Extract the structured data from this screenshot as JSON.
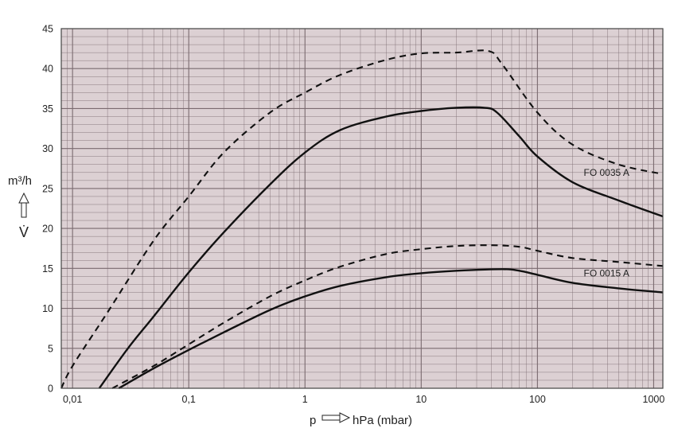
{
  "chart_data": {
    "type": "line",
    "x_scale": "log",
    "xlim": [
      0.008,
      1200
    ],
    "ylim": [
      0,
      45
    ],
    "grid": true,
    "colors": {
      "plot_background": "#dcd0d3",
      "grid": "#7a6a6f",
      "curve": "#111111"
    },
    "x_ticks": [
      {
        "value": 0.01,
        "label": "0,01"
      },
      {
        "value": 0.1,
        "label": "0,1"
      },
      {
        "value": 1,
        "label": "1"
      },
      {
        "value": 10,
        "label": "10"
      },
      {
        "value": 100,
        "label": "100"
      },
      {
        "value": 1000,
        "label": "1000"
      }
    ],
    "y_ticks": [
      {
        "value": 0,
        "label": "0"
      },
      {
        "value": 5,
        "label": "5"
      },
      {
        "value": 10,
        "label": "10"
      },
      {
        "value": 15,
        "label": "15"
      },
      {
        "value": 20,
        "label": "20"
      },
      {
        "value": 25,
        "label": "25"
      },
      {
        "value": 30,
        "label": "30"
      },
      {
        "value": 35,
        "label": "35"
      },
      {
        "value": 40,
        "label": "40"
      },
      {
        "value": 45,
        "label": "45"
      }
    ],
    "xlabel": {
      "symbol": "p",
      "unit": "hPa (mbar)"
    },
    "ylabel": {
      "unit": "m³/h",
      "symbol": "V̇"
    },
    "series": [
      {
        "label": "FO 0035 A",
        "style": "dashed",
        "points": [
          [
            0.008,
            0
          ],
          [
            0.01,
            2.8
          ],
          [
            0.02,
            9.5
          ],
          [
            0.05,
            18.5
          ],
          [
            0.1,
            24
          ],
          [
            0.2,
            29.5
          ],
          [
            0.5,
            34.5
          ],
          [
            1,
            37
          ],
          [
            2,
            39.2
          ],
          [
            5,
            41.1
          ],
          [
            10,
            41.9
          ],
          [
            20,
            42
          ],
          [
            38,
            42.2
          ],
          [
            50,
            40.5
          ],
          [
            100,
            34.5
          ],
          [
            200,
            30.5
          ],
          [
            500,
            28
          ],
          [
            1200,
            26.8
          ]
        ]
      },
      {
        "label": "FO 0035 A",
        "style": "solid",
        "points": [
          [
            0.017,
            0
          ],
          [
            0.03,
            5
          ],
          [
            0.05,
            9
          ],
          [
            0.1,
            14.5
          ],
          [
            0.2,
            19.5
          ],
          [
            0.5,
            25.5
          ],
          [
            1,
            29.5
          ],
          [
            2,
            32.3
          ],
          [
            5,
            34
          ],
          [
            10,
            34.7
          ],
          [
            20,
            35.1
          ],
          [
            35,
            35.1
          ],
          [
            45,
            34.5
          ],
          [
            70,
            31.5
          ],
          [
            100,
            29
          ],
          [
            200,
            25.8
          ],
          [
            500,
            23.5
          ],
          [
            1200,
            21.5
          ]
        ]
      },
      {
        "label": "FO 0015 A",
        "style": "dashed",
        "points": [
          [
            0.022,
            0
          ],
          [
            0.05,
            2.8
          ],
          [
            0.1,
            5.5
          ],
          [
            0.2,
            8.2
          ],
          [
            0.5,
            11.5
          ],
          [
            1,
            13.5
          ],
          [
            2,
            15.2
          ],
          [
            5,
            16.8
          ],
          [
            10,
            17.4
          ],
          [
            20,
            17.8
          ],
          [
            40,
            17.9
          ],
          [
            70,
            17.7
          ],
          [
            100,
            17.2
          ],
          [
            200,
            16.3
          ],
          [
            500,
            15.8
          ],
          [
            1200,
            15.3
          ]
        ]
      },
      {
        "label": "FO 0015 A",
        "style": "solid",
        "points": [
          [
            0.025,
            0
          ],
          [
            0.05,
            2.5
          ],
          [
            0.1,
            4.8
          ],
          [
            0.2,
            7
          ],
          [
            0.5,
            9.8
          ],
          [
            1,
            11.5
          ],
          [
            2,
            12.8
          ],
          [
            5,
            13.9
          ],
          [
            10,
            14.4
          ],
          [
            20,
            14.7
          ],
          [
            50,
            14.9
          ],
          [
            70,
            14.7
          ],
          [
            100,
            14.2
          ],
          [
            200,
            13.2
          ],
          [
            500,
            12.5
          ],
          [
            1200,
            12
          ]
        ]
      }
    ],
    "labels": [
      {
        "text": "FO 0035 A",
        "x": 250,
        "y": 26.6
      },
      {
        "text": "FO 0015 A",
        "x": 250,
        "y": 14
      }
    ]
  }
}
